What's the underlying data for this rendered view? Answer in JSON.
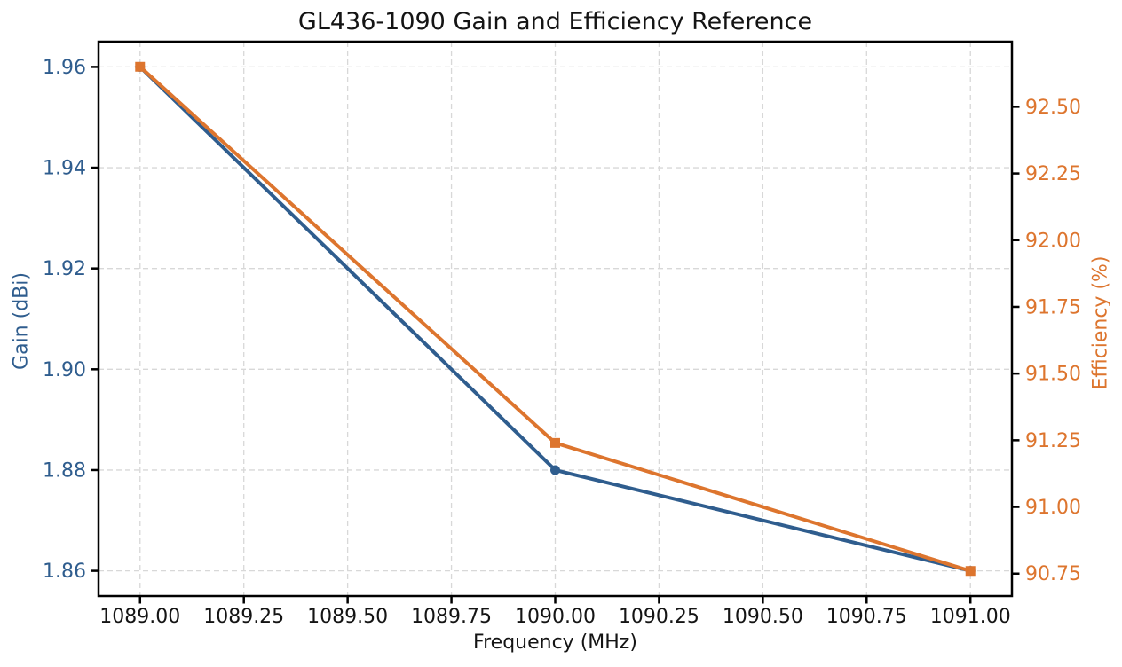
{
  "figure": {
    "title": "GL436-1090 Gain and Efficiency Reference",
    "xlabel": "Frequency (MHz)",
    "ylabel_left": "Gain (dBi)",
    "ylabel_right": "Efficiency (%)"
  },
  "colors": {
    "gain_series": "#2f5d8e",
    "efficiency_series": "#dd752e",
    "grid": "#d8d8d8",
    "spine": "#000000",
    "text": "#141414"
  },
  "chart_data": {
    "type": "line",
    "title": "GL436-1090 Gain and Efficiency Reference",
    "x": [
      1089.0,
      1090.0,
      1091.0
    ],
    "series": [
      {
        "name": "Gain (dBi)",
        "axis": "left",
        "color": "#2f5d8e",
        "marker": "circle",
        "values": [
          1.96,
          1.88,
          1.86
        ]
      },
      {
        "name": "Efficiency (%)",
        "axis": "right",
        "color": "#dd752e",
        "marker": "square",
        "values": [
          92.65,
          91.24,
          90.76
        ]
      }
    ],
    "x_axis": {
      "label": "Frequency (MHz)",
      "ticks": [
        "1089.00",
        "1089.25",
        "1089.50",
        "1089.75",
        "1090.00",
        "1090.25",
        "1090.50",
        "1090.75",
        "1091.00"
      ],
      "range": [
        1088.9,
        1091.1
      ]
    },
    "left_axis": {
      "label": "Gain (dBi)",
      "ticks": [
        "1.86",
        "1.88",
        "1.90",
        "1.92",
        "1.94",
        "1.96"
      ],
      "range": [
        1.855,
        1.965
      ]
    },
    "right_axis": {
      "label": "Efficiency (%)",
      "ticks": [
        "90.75",
        "91.00",
        "91.25",
        "91.50",
        "91.75",
        "92.00",
        "92.25",
        "92.50"
      ],
      "range": [
        90.666,
        92.744
      ]
    },
    "grid": true,
    "grid_style": "dashed",
    "legend": "none"
  }
}
